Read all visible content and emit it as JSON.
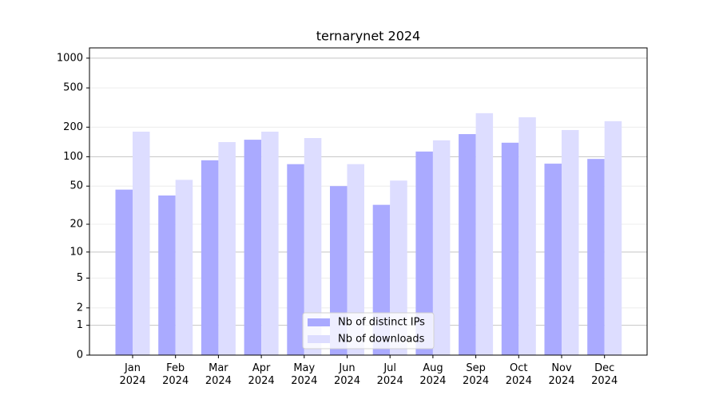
{
  "chart_data": {
    "type": "bar",
    "title": "ternarynet 2024",
    "categories": [
      [
        "Jan",
        "2024"
      ],
      [
        "Feb",
        "2024"
      ],
      [
        "Mar",
        "2024"
      ],
      [
        "Apr",
        "2024"
      ],
      [
        "May",
        "2024"
      ],
      [
        "Jun",
        "2024"
      ],
      [
        "Jul",
        "2024"
      ],
      [
        "Aug",
        "2024"
      ],
      [
        "Sep",
        "2024"
      ],
      [
        "Oct",
        "2024"
      ],
      [
        "Nov",
        "2024"
      ],
      [
        "Dec",
        "2024"
      ]
    ],
    "series": [
      {
        "name": "Nb of distinct IPs",
        "color": "#aaaaff",
        "values": [
          46,
          40,
          92,
          149,
          84,
          50,
          32,
          113,
          170,
          139,
          85,
          95
        ]
      },
      {
        "name": "Nb of downloads",
        "color": "#ddddff",
        "values": [
          180,
          58,
          141,
          180,
          155,
          84,
          57,
          147,
          277,
          252,
          187,
          230
        ]
      }
    ],
    "yscale": "log1p",
    "ylim": [
      0,
      1270
    ],
    "yticks": [
      0,
      1,
      2,
      5,
      10,
      20,
      50,
      100,
      200,
      500,
      1000
    ],
    "grid": true,
    "legend": "lower center"
  }
}
